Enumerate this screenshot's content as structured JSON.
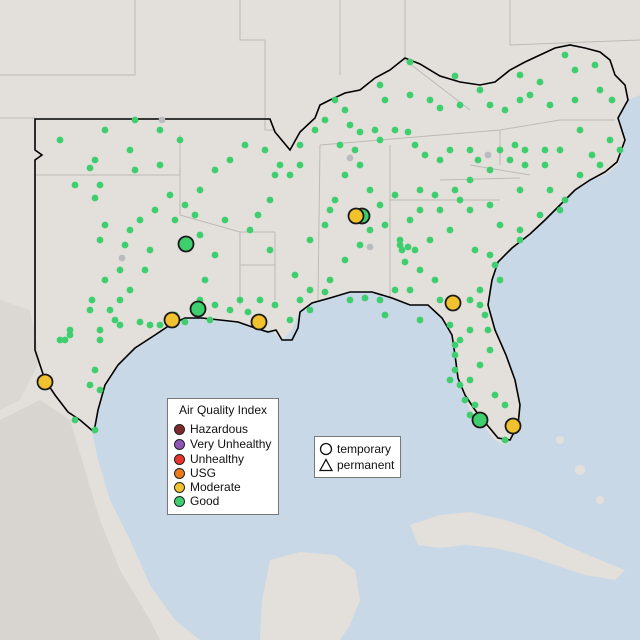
{
  "colors": {
    "ocean": "#c9d8e6",
    "land": "#e3e0dc",
    "terrain": "#d5d1cc",
    "border": "#000000",
    "state_line": "#bdbab6",
    "monitor_small": "#3fce6e",
    "monitor_inactive": "#b9bbbd"
  },
  "aqi_legend": {
    "title": "Air Quality Index",
    "items": [
      {
        "label": "Hazardous",
        "color": "#7e2a2a"
      },
      {
        "label": "Very Unhealthy",
        "color": "#8e55b5"
      },
      {
        "label": "Unhealthy",
        "color": "#e8352b"
      },
      {
        "label": "USG",
        "color": "#ea7a1c"
      },
      {
        "label": "Moderate",
        "color": "#f2c12e"
      },
      {
        "label": "Good",
        "color": "#3fce6e"
      }
    ]
  },
  "shape_legend": {
    "items": [
      {
        "label": "temporary",
        "icon": "circle-icon"
      },
      {
        "label": "permanent",
        "icon": "triangle-icon"
      }
    ]
  },
  "highlighted_stations": [
    {
      "category": "Good",
      "shape": "circle"
    },
    {
      "category": "Good",
      "shape": "circle"
    },
    {
      "category": "Good",
      "shape": "circle"
    },
    {
      "category": "Good",
      "shape": "circle"
    },
    {
      "category": "Moderate",
      "shape": "circle"
    },
    {
      "category": "Moderate",
      "shape": "circle"
    },
    {
      "category": "Moderate",
      "shape": "circle"
    },
    {
      "category": "Moderate",
      "shape": "circle"
    },
    {
      "category": "Moderate",
      "shape": "circle"
    },
    {
      "category": "Moderate",
      "shape": "circle"
    }
  ]
}
